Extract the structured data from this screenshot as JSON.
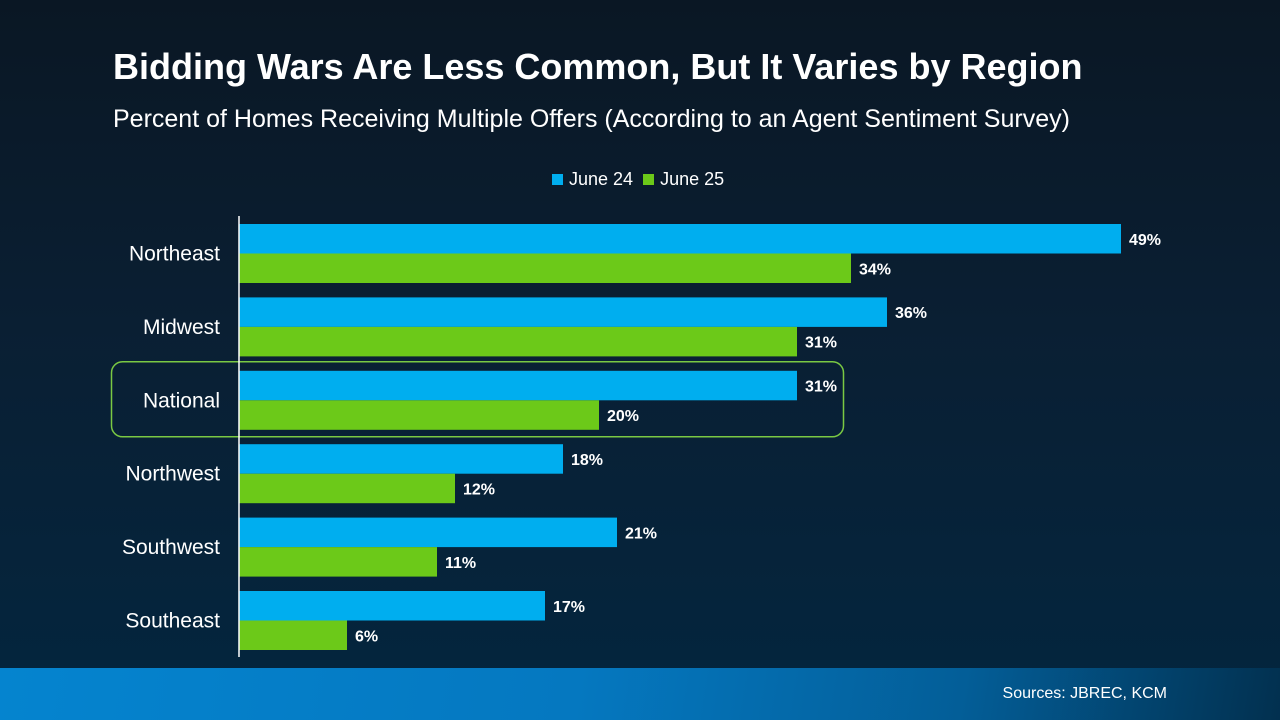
{
  "chart_data": {
    "type": "bar",
    "orientation": "horizontal",
    "title": "Bidding Wars Are Less Common, But It Varies by Region",
    "subtitle": "Percent of Homes Receiving Multiple Offers (According to an Agent Sentiment Survey)",
    "categories": [
      "Northeast",
      "Midwest",
      "National",
      "Northwest",
      "Southwest",
      "Southeast"
    ],
    "series": [
      {
        "name": "June 24",
        "color": "#00aeef",
        "values": [
          49,
          36,
          31,
          18,
          21,
          17
        ]
      },
      {
        "name": "June 25",
        "color": "#6cc919",
        "values": [
          34,
          31,
          20,
          12,
          11,
          6
        ]
      }
    ],
    "value_suffix": "%",
    "xlim": [
      0,
      55
    ],
    "grid": false,
    "legend_position": "top",
    "highlighted_category": "National",
    "highlight_color": "#7ac943"
  },
  "footer": {
    "sources": "Sources: JBREC, KCM"
  }
}
